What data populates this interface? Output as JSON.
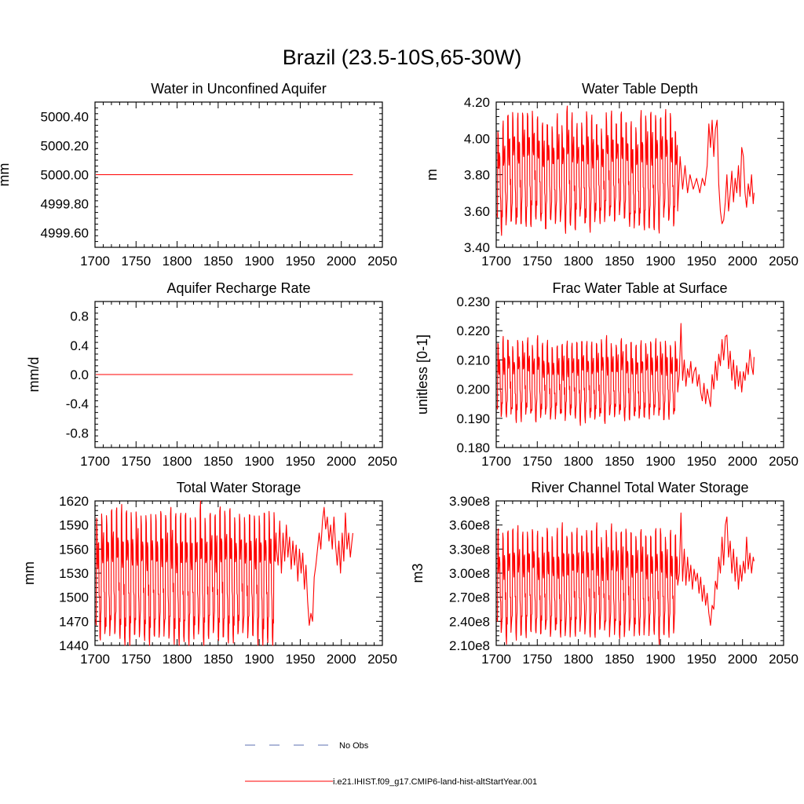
{
  "title": "Brazil (23.5-10S,65-30W)",
  "colors": {
    "model": "#ff0000",
    "obs": "#5b6fb0",
    "axis": "#000000"
  },
  "chart_data": [
    {
      "type": "line",
      "title": "Water in Unconfined Aquifer",
      "ylabel": "mm",
      "xlim": [
        1700,
        2050
      ],
      "ylim": [
        4999.5,
        5000.5
      ],
      "xticks": [
        1700,
        1750,
        1800,
        1850,
        1900,
        1950,
        2000,
        2050
      ],
      "xtick_labels": [
        "1700",
        "1750",
        "1800",
        "1850",
        "1900",
        "1950",
        "2000",
        "2050"
      ],
      "yticks": [
        4999.6,
        4999.8,
        5000.0,
        5000.2,
        5000.4
      ],
      "ytick_labels": [
        "4999.60",
        "4999.80",
        "5000.00",
        "5000.20",
        "5000.40"
      ],
      "x_start": 1701,
      "x_end": 2014,
      "pattern": "constant",
      "mean": 5000.0
    },
    {
      "type": "line",
      "title": "Water Table Depth",
      "ylabel": "m",
      "xlim": [
        1700,
        2050
      ],
      "ylim": [
        3.4,
        4.2
      ],
      "xticks": [
        1700,
        1750,
        1800,
        1850,
        1900,
        1950,
        2000,
        2050
      ],
      "xtick_labels": [
        "1700",
        "1750",
        "1800",
        "1850",
        "1900",
        "1950",
        "2000",
        "2050"
      ],
      "yticks": [
        3.4,
        3.6,
        3.8,
        4.0,
        4.2
      ],
      "ytick_labels": [
        "3.40",
        "3.60",
        "3.80",
        "4.00",
        "4.20"
      ],
      "x_start": 1701,
      "x_end": 2014,
      "pattern": "cycling",
      "cycle_until": 1921,
      "period": 6,
      "peak": 4.09,
      "trough": 3.54,
      "peak_spread": 0.06,
      "trough_spread": 0.04,
      "recent": [
        [
          1921,
          3.6
        ],
        [
          1924,
          3.9
        ],
        [
          1927,
          3.72
        ],
        [
          1930,
          3.85
        ],
        [
          1933,
          3.7
        ],
        [
          1936,
          3.8
        ],
        [
          1940,
          3.72
        ],
        [
          1944,
          3.78
        ],
        [
          1948,
          3.7
        ],
        [
          1951,
          3.78
        ],
        [
          1954,
          3.74
        ],
        [
          1957,
          3.85
        ],
        [
          1959,
          4.08
        ],
        [
          1961,
          3.95
        ],
        [
          1963,
          4.1
        ],
        [
          1965,
          3.9
        ],
        [
          1967,
          4.05
        ],
        [
          1969,
          4.1
        ],
        [
          1971,
          3.75
        ],
        [
          1973,
          3.6
        ],
        [
          1975,
          3.53
        ],
        [
          1977,
          3.55
        ],
        [
          1979,
          3.65
        ],
        [
          1981,
          3.8
        ],
        [
          1983,
          3.6
        ],
        [
          1985,
          3.7
        ],
        [
          1987,
          3.82
        ],
        [
          1989,
          3.65
        ],
        [
          1991,
          3.78
        ],
        [
          1993,
          3.7
        ],
        [
          1995,
          3.85
        ],
        [
          1997,
          3.68
        ],
        [
          1999,
          3.95
        ],
        [
          2001,
          3.9
        ],
        [
          2003,
          3.7
        ],
        [
          2005,
          3.62
        ],
        [
          2007,
          3.75
        ],
        [
          2009,
          3.68
        ],
        [
          2011,
          3.8
        ],
        [
          2013,
          3.64
        ],
        [
          2014,
          3.7
        ]
      ]
    },
    {
      "type": "line",
      "title": "Aquifer Recharge Rate",
      "ylabel": "mm/d",
      "xlim": [
        1700,
        2050
      ],
      "ylim": [
        -1.0,
        1.0
      ],
      "xticks": [
        1700,
        1750,
        1800,
        1850,
        1900,
        1950,
        2000,
        2050
      ],
      "xtick_labels": [
        "1700",
        "1750",
        "1800",
        "1850",
        "1900",
        "1950",
        "2000",
        "2050"
      ],
      "yticks": [
        -0.8,
        -0.4,
        0.0,
        0.4,
        0.8
      ],
      "ytick_labels": [
        "-0.8",
        "-0.4",
        "0.0",
        "0.4",
        "0.8"
      ],
      "x_start": 1701,
      "x_end": 2014,
      "pattern": "constant",
      "mean": 0.0
    },
    {
      "type": "line",
      "title": "Frac Water Table at Surface",
      "ylabel": "unitless [0-1]",
      "xlim": [
        1700,
        2050
      ],
      "ylim": [
        0.18,
        0.23
      ],
      "xticks": [
        1700,
        1750,
        1800,
        1850,
        1900,
        1950,
        2000,
        2050
      ],
      "xtick_labels": [
        "1700",
        "1750",
        "1800",
        "1850",
        "1900",
        "1950",
        "2000",
        "2050"
      ],
      "yticks": [
        0.18,
        0.19,
        0.2,
        0.21,
        0.22,
        0.23
      ],
      "ytick_labels": [
        "0.180",
        "0.190",
        "0.200",
        "0.210",
        "0.220",
        "0.230"
      ],
      "x_start": 1701,
      "x_end": 2014,
      "pattern": "cycling",
      "cycle_until": 1921,
      "period": 6,
      "peak": 0.2155,
      "trough": 0.1905,
      "peak_spread": 0.0015,
      "trough_spread": 0.0015,
      "recent": [
        [
          1921,
          0.199
        ],
        [
          1923,
          0.205
        ],
        [
          1925,
          0.2225
        ],
        [
          1927,
          0.203
        ],
        [
          1929,
          0.21
        ],
        [
          1931,
          0.201
        ],
        [
          1933,
          0.207
        ],
        [
          1935,
          0.204
        ],
        [
          1937,
          0.2095
        ],
        [
          1939,
          0.202
        ],
        [
          1941,
          0.206
        ],
        [
          1943,
          0.2075
        ],
        [
          1945,
          0.201
        ],
        [
          1947,
          0.205
        ],
        [
          1949,
          0.199
        ],
        [
          1951,
          0.196
        ],
        [
          1953,
          0.202
        ],
        [
          1955,
          0.195
        ],
        [
          1957,
          0.2
        ],
        [
          1959,
          0.197
        ],
        [
          1961,
          0.194
        ],
        [
          1963,
          0.205
        ],
        [
          1965,
          0.2
        ],
        [
          1967,
          0.2095
        ],
        [
          1969,
          0.203
        ],
        [
          1971,
          0.212
        ],
        [
          1973,
          0.208
        ],
        [
          1975,
          0.217
        ],
        [
          1977,
          0.21
        ],
        [
          1979,
          0.218
        ],
        [
          1981,
          0.2185
        ],
        [
          1983,
          0.207
        ],
        [
          1985,
          0.213
        ],
        [
          1987,
          0.203
        ],
        [
          1989,
          0.21
        ],
        [
          1991,
          0.2
        ],
        [
          1993,
          0.208
        ],
        [
          1995,
          0.201
        ],
        [
          1997,
          0.206
        ],
        [
          1999,
          0.199
        ],
        [
          2001,
          0.206
        ],
        [
          2003,
          0.203
        ],
        [
          2005,
          0.209
        ],
        [
          2007,
          0.205
        ],
        [
          2009,
          0.2135
        ],
        [
          2011,
          0.208
        ],
        [
          2013,
          0.205
        ],
        [
          2014,
          0.211
        ]
      ]
    },
    {
      "type": "line",
      "title": "Total Water Storage",
      "ylabel": "mm",
      "xlim": [
        1700,
        2050
      ],
      "ylim": [
        1440,
        1620
      ],
      "xticks": [
        1700,
        1750,
        1800,
        1850,
        1900,
        1950,
        2000,
        2050
      ],
      "xtick_labels": [
        "1700",
        "1750",
        "1800",
        "1850",
        "1900",
        "1950",
        "2000",
        "2050"
      ],
      "yticks": [
        1440,
        1470,
        1500,
        1530,
        1560,
        1590,
        1620
      ],
      "ytick_labels": [
        "1440",
        "1470",
        "1500",
        "1530",
        "1560",
        "1590",
        "1620"
      ],
      "x_start": 1701,
      "x_end": 2014,
      "pattern": "cycling",
      "cycle_until": 1921,
      "period": 6,
      "peak": 1603,
      "trough": 1452,
      "peak_spread": 5,
      "trough_spread": 4,
      "recent": [
        [
          1921,
          1560
        ],
        [
          1923,
          1540
        ],
        [
          1925,
          1595
        ],
        [
          1927,
          1530
        ],
        [
          1929,
          1580
        ],
        [
          1931,
          1545
        ],
        [
          1933,
          1590
        ],
        [
          1935,
          1550
        ],
        [
          1937,
          1575
        ],
        [
          1939,
          1535
        ],
        [
          1941,
          1570
        ],
        [
          1943,
          1540
        ],
        [
          1945,
          1565
        ],
        [
          1947,
          1520
        ],
        [
          1949,
          1560
        ],
        [
          1951,
          1530
        ],
        [
          1953,
          1555
        ],
        [
          1955,
          1510
        ],
        [
          1957,
          1540
        ],
        [
          1959,
          1495
        ],
        [
          1961,
          1465
        ],
        [
          1963,
          1480
        ],
        [
          1965,
          1470
        ],
        [
          1967,
          1525
        ],
        [
          1969,
          1540
        ],
        [
          1971,
          1560
        ],
        [
          1973,
          1580
        ],
        [
          1975,
          1560
        ],
        [
          1977,
          1595
        ],
        [
          1979,
          1612
        ],
        [
          1981,
          1585
        ],
        [
          1983,
          1600
        ],
        [
          1985,
          1570
        ],
        [
          1987,
          1590
        ],
        [
          1989,
          1560
        ],
        [
          1991,
          1600
        ],
        [
          1993,
          1565
        ],
        [
          1995,
          1540
        ],
        [
          1997,
          1570
        ],
        [
          1999,
          1530
        ],
        [
          2001,
          1580
        ],
        [
          2003,
          1545
        ],
        [
          2005,
          1605
        ],
        [
          2007,
          1560
        ],
        [
          2009,
          1580
        ],
        [
          2011,
          1550
        ],
        [
          2013,
          1570
        ],
        [
          2014,
          1580
        ]
      ]
    },
    {
      "type": "line",
      "title": "River Channel Total Water Storage",
      "ylabel": "m3",
      "xlim": [
        1700,
        2050
      ],
      "ylim": [
        210000000,
        390000000
      ],
      "xticks": [
        1700,
        1750,
        1800,
        1850,
        1900,
        1950,
        2000,
        2050
      ],
      "xtick_labels": [
        "1700",
        "1750",
        "1800",
        "1850",
        "1900",
        "1950",
        "2000",
        "2050"
      ],
      "yticks": [
        210000000,
        240000000,
        270000000,
        300000000,
        330000000,
        360000000,
        390000000
      ],
      "ytick_labels": [
        "2.10e8",
        "2.40e8",
        "2.70e8",
        "3.00e8",
        "3.30e8",
        "3.60e8",
        "3.90e8"
      ],
      "x_start": 1701,
      "x_end": 2014,
      "pattern": "cycling",
      "cycle_until": 1921,
      "period": 6,
      "peak": 350000000,
      "trough": 225000000,
      "peak_spread": 6000000,
      "trough_spread": 5000000,
      "recent": [
        [
          1921,
          285000000
        ],
        [
          1923,
          300000000
        ],
        [
          1925,
          375000000
        ],
        [
          1927,
          290000000
        ],
        [
          1929,
          330000000
        ],
        [
          1931,
          285000000
        ],
        [
          1933,
          320000000
        ],
        [
          1935,
          290000000
        ],
        [
          1937,
          310000000
        ],
        [
          1939,
          280000000
        ],
        [
          1941,
          305000000
        ],
        [
          1943,
          290000000
        ],
        [
          1945,
          300000000
        ],
        [
          1947,
          275000000
        ],
        [
          1949,
          295000000
        ],
        [
          1951,
          265000000
        ],
        [
          1953,
          285000000
        ],
        [
          1955,
          260000000
        ],
        [
          1957,
          275000000
        ],
        [
          1959,
          250000000
        ],
        [
          1961,
          235000000
        ],
        [
          1963,
          260000000
        ],
        [
          1965,
          255000000
        ],
        [
          1967,
          290000000
        ],
        [
          1969,
          280000000
        ],
        [
          1971,
          320000000
        ],
        [
          1973,
          300000000
        ],
        [
          1975,
          345000000
        ],
        [
          1977,
          310000000
        ],
        [
          1979,
          360000000
        ],
        [
          1981,
          370000000
        ],
        [
          1983,
          320000000
        ],
        [
          1985,
          340000000
        ],
        [
          1987,
          300000000
        ],
        [
          1989,
          330000000
        ],
        [
          1991,
          290000000
        ],
        [
          1993,
          320000000
        ],
        [
          1995,
          280000000
        ],
        [
          1997,
          310000000
        ],
        [
          1999,
          290000000
        ],
        [
          2001,
          315000000
        ],
        [
          2003,
          300000000
        ],
        [
          2005,
          345000000
        ],
        [
          2007,
          305000000
        ],
        [
          2009,
          325000000
        ],
        [
          2011,
          300000000
        ],
        [
          2013,
          320000000
        ],
        [
          2014,
          315000000
        ]
      ]
    }
  ],
  "legend": {
    "entries": [
      {
        "label": "No Obs",
        "style": "dashed",
        "color": "#5b6fb0"
      },
      {
        "label": "i.e21.IHIST.f09_g17.CMIP6-land-hist-altStartYear.001",
        "style": "solid",
        "color": "#ff0000"
      }
    ]
  }
}
